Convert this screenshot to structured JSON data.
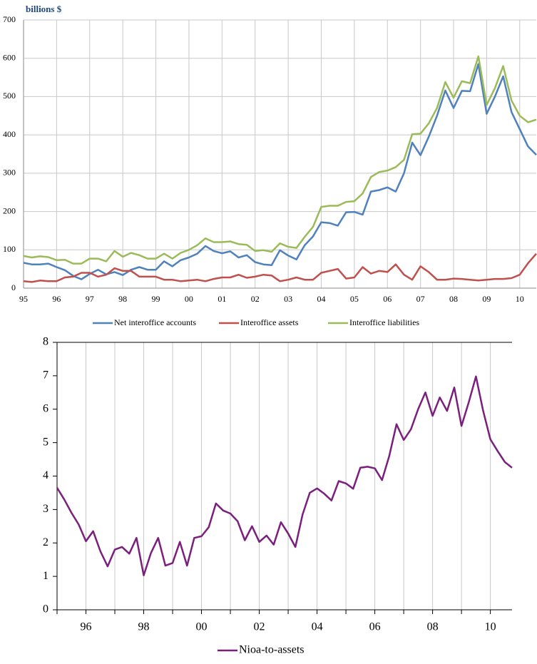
{
  "chart_data": [
    {
      "type": "line",
      "y_label": "billions $",
      "categories": [
        "95",
        null,
        null,
        null,
        "96",
        null,
        null,
        null,
        "97",
        null,
        null,
        null,
        "98",
        null,
        null,
        null,
        "99",
        null,
        null,
        null,
        "00",
        null,
        null,
        null,
        "01",
        null,
        null,
        null,
        "02",
        null,
        null,
        null,
        "03",
        null,
        null,
        null,
        "04",
        null,
        null,
        null,
        "05",
        null,
        null,
        null,
        "06",
        null,
        null,
        null,
        "07",
        null,
        null,
        null,
        "08",
        null,
        null,
        null,
        "09",
        null,
        null,
        null,
        "10",
        null,
        null
      ],
      "ylim": [
        0,
        700
      ],
      "yticks": [
        0,
        100,
        200,
        300,
        400,
        500,
        600,
        700
      ],
      "grid": true,
      "series": [
        {
          "name": "Net interoffice accounts",
          "color": "#4f81bd",
          "values": [
            66,
            62,
            62,
            64,
            55,
            47,
            32,
            23,
            37,
            48,
            36,
            42,
            34,
            48,
            55,
            48,
            48,
            70,
            57,
            73,
            80,
            90,
            110,
            97,
            91,
            96,
            80,
            86,
            68,
            62,
            60,
            99,
            85,
            75,
            112,
            135,
            172,
            170,
            163,
            198,
            199,
            192,
            252,
            256,
            263,
            252,
            300,
            380,
            347,
            395,
            450,
            516,
            470,
            515,
            514,
            585,
            455,
            500,
            553,
            460,
            415,
            370,
            348
          ]
        },
        {
          "name": "Interoffice assets",
          "color": "#c0504d",
          "values": [
            18,
            16,
            20,
            18,
            18,
            28,
            30,
            40,
            40,
            30,
            35,
            52,
            45,
            45,
            30,
            30,
            30,
            22,
            22,
            18,
            20,
            22,
            18,
            24,
            28,
            28,
            35,
            27,
            30,
            35,
            33,
            18,
            22,
            28,
            22,
            22,
            40,
            45,
            50,
            25,
            28,
            55,
            38,
            45,
            42,
            62,
            35,
            22,
            57,
            42,
            22,
            22,
            25,
            24,
            22,
            20,
            22,
            24,
            24,
            26,
            35,
            65,
            90
          ]
        },
        {
          "name": "Interoffice liabilities",
          "color": "#9bbb59",
          "values": [
            84,
            80,
            83,
            81,
            73,
            74,
            64,
            64,
            77,
            77,
            70,
            97,
            82,
            92,
            86,
            77,
            77,
            90,
            77,
            92,
            100,
            112,
            130,
            120,
            120,
            122,
            115,
            113,
            97,
            99,
            95,
            117,
            108,
            105,
            134,
            160,
            212,
            215,
            215,
            225,
            227,
            247,
            290,
            303,
            307,
            316,
            335,
            402,
            403,
            430,
            470,
            538,
            497,
            540,
            535,
            605,
            478,
            522,
            580,
            490,
            450,
            433,
            440
          ]
        }
      ]
    },
    {
      "type": "line",
      "categories": [
        null,
        null,
        null,
        null,
        "96",
        null,
        null,
        null,
        null,
        null,
        null,
        null,
        "98",
        null,
        null,
        null,
        null,
        null,
        null,
        null,
        "00",
        null,
        null,
        null,
        null,
        null,
        null,
        null,
        "02",
        null,
        null,
        null,
        null,
        null,
        null,
        null,
        "04",
        null,
        null,
        null,
        null,
        null,
        null,
        null,
        "06",
        null,
        null,
        null,
        null,
        null,
        null,
        null,
        "08",
        null,
        null,
        null,
        null,
        null,
        null,
        null,
        "10",
        null,
        null,
        null
      ],
      "ylim": [
        0,
        8
      ],
      "yticks": [
        0,
        1,
        2,
        3,
        4,
        5,
        6,
        7,
        8
      ],
      "grid": "x",
      "series": [
        {
          "name": "Nioa-to-assets",
          "color": "#7b1f7f",
          "values": [
            3.65,
            3.3,
            2.9,
            2.55,
            2.05,
            2.35,
            1.75,
            1.3,
            1.8,
            1.88,
            1.68,
            2.15,
            1.03,
            1.7,
            2.15,
            1.32,
            1.4,
            2.03,
            1.32,
            2.15,
            2.2,
            2.47,
            3.18,
            2.97,
            2.88,
            2.65,
            2.08,
            2.5,
            2.03,
            2.22,
            1.95,
            2.62,
            2.28,
            1.88,
            2.85,
            3.5,
            3.63,
            3.47,
            3.27,
            3.85,
            3.78,
            3.62,
            4.25,
            4.28,
            4.23,
            3.88,
            4.6,
            5.55,
            5.08,
            5.4,
            6.0,
            6.5,
            5.8,
            6.35,
            5.95,
            6.65,
            5.5,
            6.2,
            6.98,
            5.95,
            5.1,
            4.75,
            4.42,
            4.25
          ]
        }
      ]
    }
  ]
}
